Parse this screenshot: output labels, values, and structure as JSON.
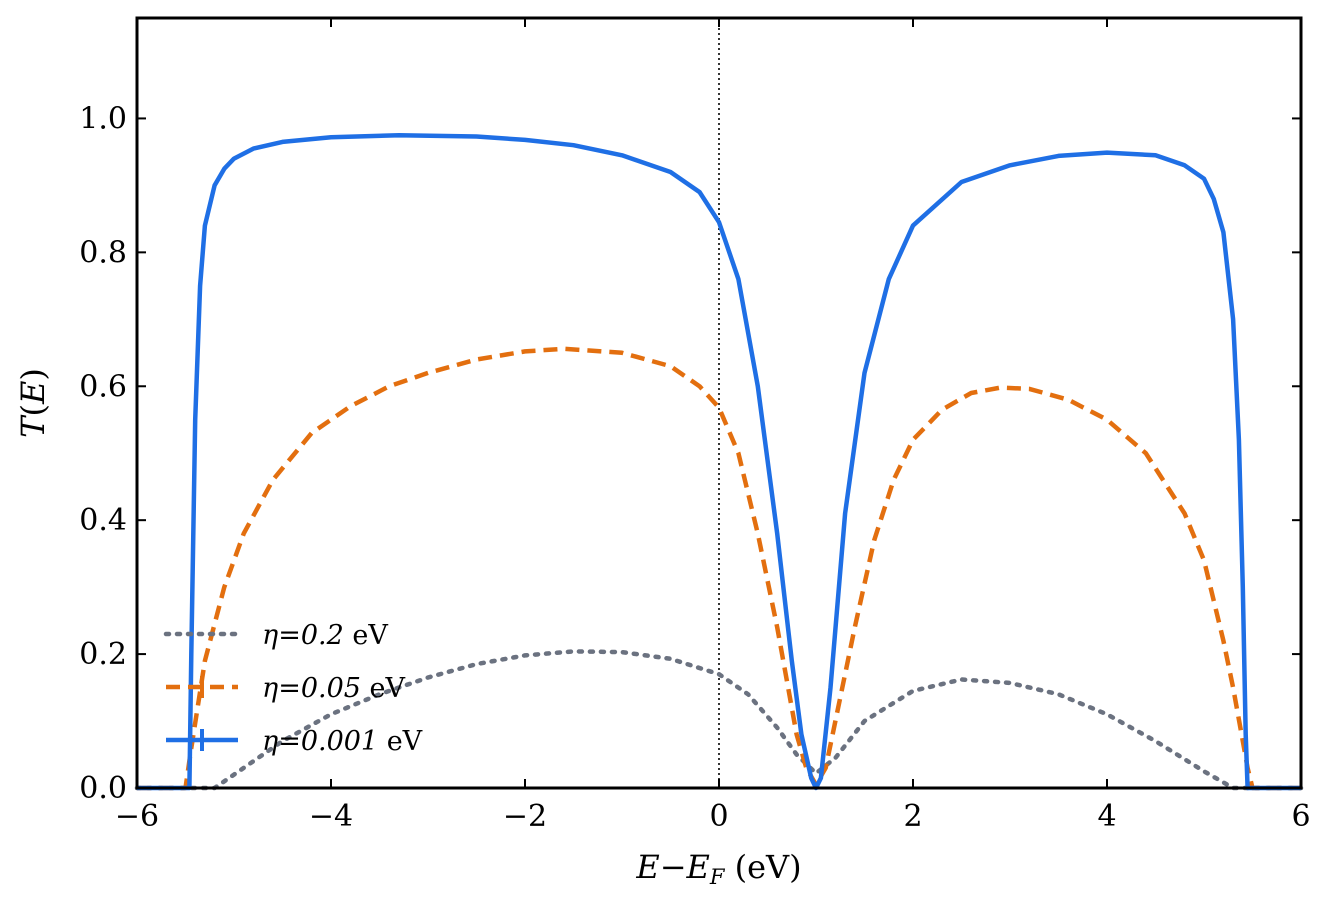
{
  "chart_data": {
    "type": "line",
    "xlabel": "E − E_F (eV)",
    "ylabel": "T(E)",
    "xlim": [
      -6,
      6
    ],
    "ylim": [
      0,
      1.15
    ],
    "x_ticks": [
      -6,
      -4,
      -2,
      0,
      2,
      4,
      6
    ],
    "x_tick_labels": [
      "−6",
      "−4",
      "−2",
      "0",
      "2",
      "4",
      "6"
    ],
    "y_ticks": [
      0,
      0.2,
      0.4,
      0.6,
      0.8,
      1.0
    ],
    "y_tick_labels": [
      "0.0",
      "0.2",
      "0.4",
      "0.6",
      "0.8",
      "1.0"
    ],
    "vertical_reference_line": {
      "x": 0,
      "style": "dotted",
      "color": "#000000"
    },
    "legend_position": "lower-left",
    "series": [
      {
        "name": "η = 0.2 eV",
        "legend_text": {
          "symbol": "η",
          "value": "0.2",
          "unit": "eV"
        },
        "color": "#6b7280",
        "style": "dotted",
        "x": [
          -6.0,
          -5.5,
          -5.2,
          -5.0,
          -4.5,
          -4.0,
          -3.5,
          -3.0,
          -2.5,
          -2.0,
          -1.5,
          -1.0,
          -0.5,
          0.0,
          0.3,
          0.6,
          0.8,
          1.0,
          1.2,
          1.5,
          2.0,
          2.5,
          3.0,
          3.5,
          4.0,
          4.5,
          5.0,
          5.3,
          5.5,
          6.0
        ],
        "y": [
          0.0,
          0.0,
          0.0,
          0.02,
          0.07,
          0.11,
          0.14,
          0.165,
          0.185,
          0.198,
          0.204,
          0.203,
          0.193,
          0.17,
          0.14,
          0.09,
          0.05,
          0.022,
          0.045,
          0.1,
          0.145,
          0.162,
          0.157,
          0.14,
          0.11,
          0.07,
          0.025,
          0.0,
          0.0,
          0.0
        ]
      },
      {
        "name": "η = 0.05 eV",
        "legend_text": {
          "symbol": "η",
          "value": "0.05",
          "unit": "eV"
        },
        "color": "#e36f0f",
        "style": "dashed",
        "x": [
          -6.0,
          -5.5,
          -5.45,
          -5.3,
          -5.1,
          -4.9,
          -4.6,
          -4.2,
          -3.8,
          -3.4,
          -3.0,
          -2.5,
          -2.0,
          -1.6,
          -1.0,
          -0.5,
          -0.2,
          0.0,
          0.2,
          0.4,
          0.6,
          0.8,
          0.9,
          1.0,
          1.1,
          1.2,
          1.4,
          1.6,
          1.8,
          2.0,
          2.3,
          2.6,
          2.9,
          3.2,
          3.6,
          4.0,
          4.4,
          4.8,
          5.0,
          5.2,
          5.3,
          5.4,
          5.45,
          5.5,
          6.0
        ],
        "y": [
          0.0,
          0.0,
          0.05,
          0.19,
          0.3,
          0.38,
          0.46,
          0.53,
          0.57,
          0.6,
          0.62,
          0.64,
          0.652,
          0.656,
          0.65,
          0.63,
          0.6,
          0.568,
          0.5,
          0.38,
          0.24,
          0.08,
          0.03,
          0.005,
          0.03,
          0.1,
          0.24,
          0.37,
          0.46,
          0.52,
          0.565,
          0.59,
          0.598,
          0.596,
          0.58,
          0.55,
          0.5,
          0.41,
          0.34,
          0.22,
          0.15,
          0.07,
          0.03,
          0.0,
          0.0
        ],
        "label_note": ""
      },
      {
        "name": "η = 0.001 eV",
        "legend_text": {
          "symbol": "η",
          "value": "0.001",
          "unit": "eV"
        },
        "color": "#1f6fe5",
        "style": "solid",
        "x": [
          -6.0,
          -5.46,
          -5.44,
          -5.4,
          -5.35,
          -5.3,
          -5.2,
          -5.1,
          -5.0,
          -4.8,
          -4.5,
          -4.0,
          -3.3,
          -2.5,
          -2.0,
          -1.5,
          -1.0,
          -0.5,
          -0.2,
          0.0,
          0.2,
          0.4,
          0.6,
          0.75,
          0.85,
          0.95,
          1.0,
          1.05,
          1.15,
          1.3,
          1.5,
          1.75,
          2.0,
          2.5,
          3.0,
          3.5,
          4.0,
          4.5,
          4.8,
          5.0,
          5.1,
          5.2,
          5.3,
          5.36,
          5.4,
          5.43,
          5.45,
          6.0
        ],
        "y": [
          0.0,
          0.0,
          0.2,
          0.55,
          0.75,
          0.84,
          0.9,
          0.925,
          0.94,
          0.955,
          0.965,
          0.972,
          0.975,
          0.973,
          0.968,
          0.96,
          0.945,
          0.92,
          0.89,
          0.845,
          0.76,
          0.6,
          0.38,
          0.19,
          0.08,
          0.015,
          0.0,
          0.015,
          0.15,
          0.41,
          0.62,
          0.76,
          0.84,
          0.905,
          0.93,
          0.944,
          0.949,
          0.945,
          0.93,
          0.91,
          0.88,
          0.83,
          0.7,
          0.52,
          0.3,
          0.08,
          0.0,
          0.0
        ]
      }
    ]
  }
}
